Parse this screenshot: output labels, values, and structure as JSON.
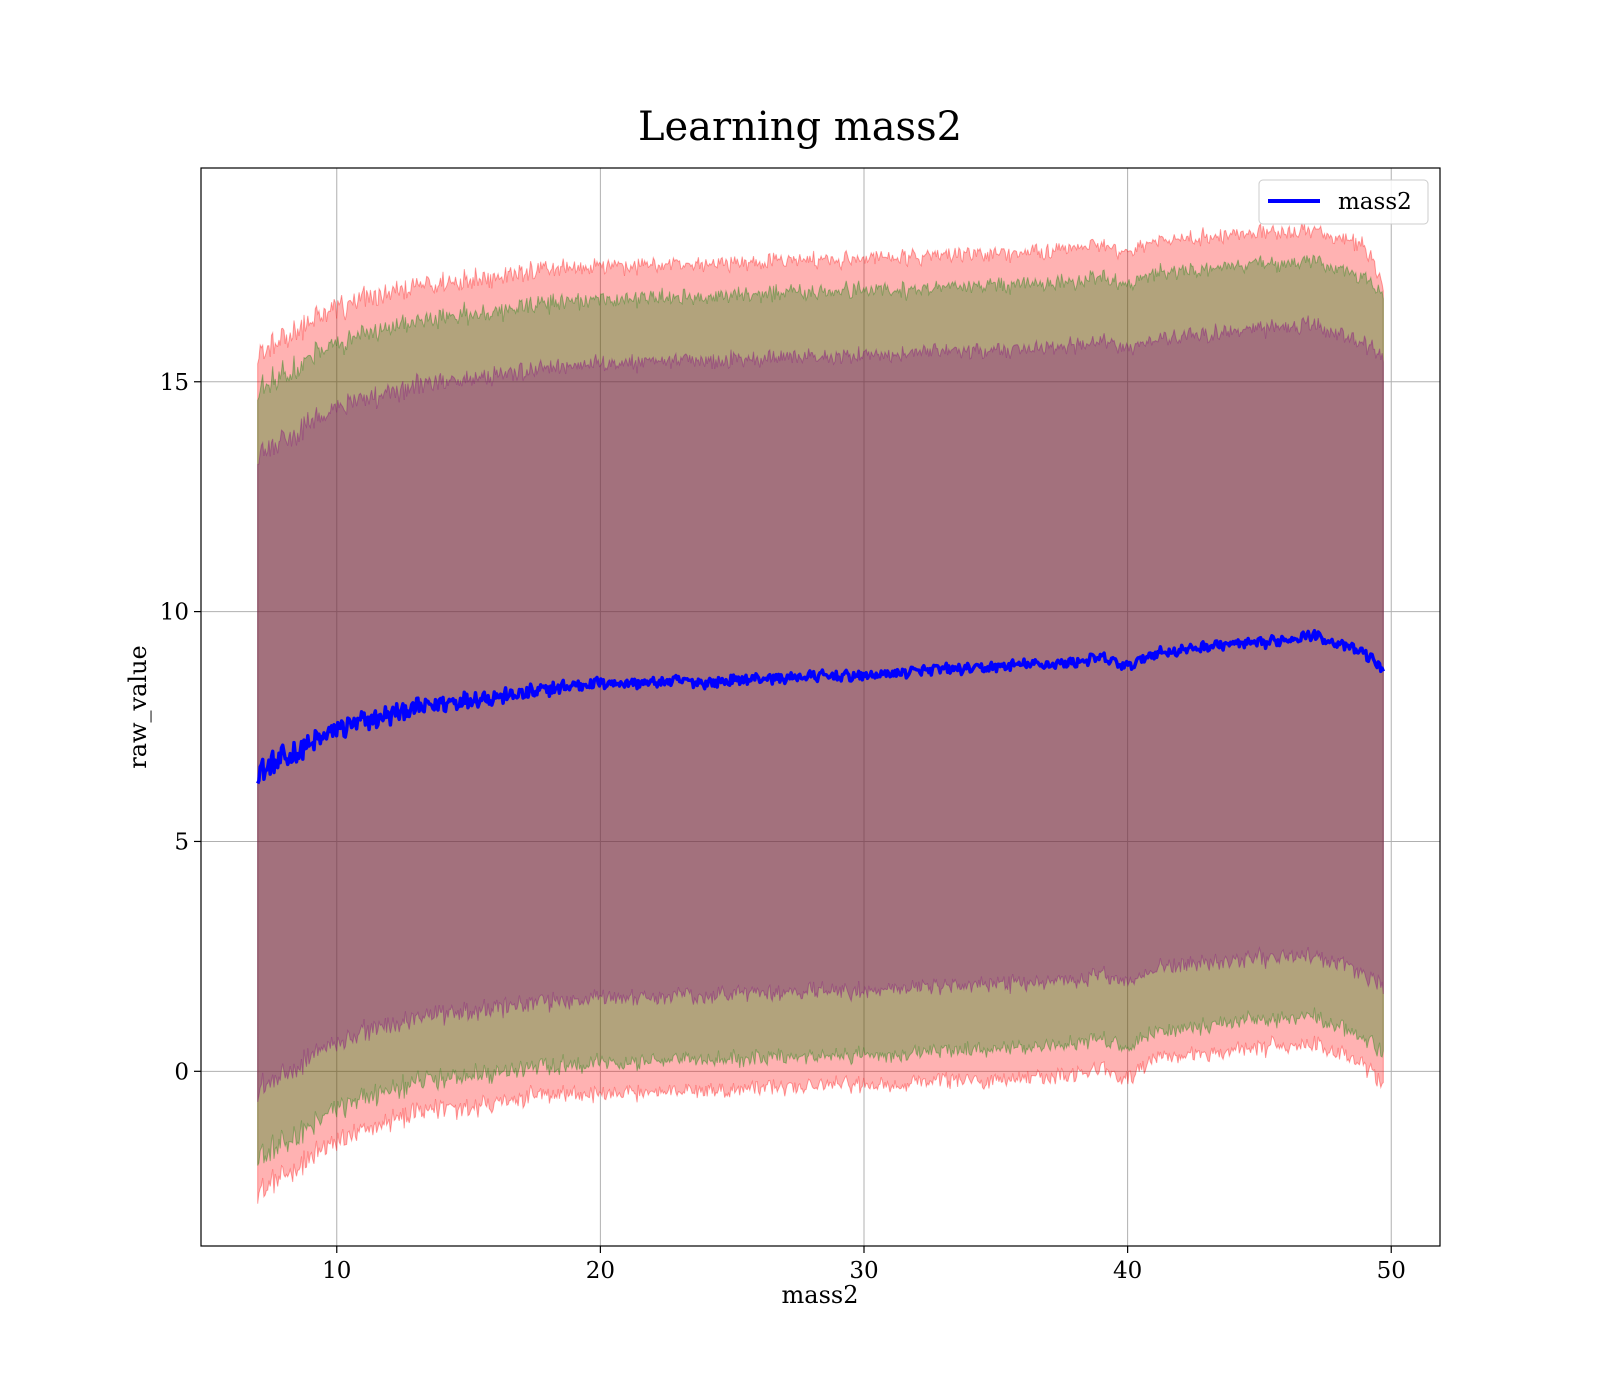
{
  "chart_data": {
    "type": "line",
    "title": "Learning mass2",
    "xlabel": "mass2",
    "ylabel": "raw_value",
    "xlim": [
      4.85,
      51.85
    ],
    "ylim": [
      -3.8,
      19.65
    ],
    "grid": true,
    "legend_position": "top-right",
    "x_ticks": [
      10,
      20,
      30,
      40,
      50
    ],
    "y_ticks": [
      0,
      5,
      10,
      15
    ],
    "x_tick_labels": [
      "10",
      "20",
      "30",
      "40",
      "50"
    ],
    "y_tick_labels": [
      "0",
      "5",
      "10",
      "15"
    ],
    "mean_series": {
      "name": "mass2",
      "color": "#0000ff",
      "x": [
        7.0,
        8.0,
        9.0,
        10.0,
        11.0,
        12.0,
        13.0,
        14.0,
        15.0,
        16.0,
        17.0,
        18.0,
        19.0,
        20.0,
        21.0,
        22.0,
        23.0,
        24.0,
        25.0,
        26.0,
        27.0,
        28.0,
        29.0,
        30.0,
        31.0,
        32.0,
        33.0,
        34.0,
        35.0,
        36.0,
        37.0,
        38.0,
        39.0,
        40.0,
        41.0,
        42.0,
        43.0,
        44.0,
        45.0,
        46.0,
        47.0,
        48.0,
        49.0,
        49.7
      ],
      "values": [
        6.5,
        6.8,
        7.1,
        7.45,
        7.6,
        7.75,
        7.9,
        8.0,
        8.1,
        8.15,
        8.2,
        8.3,
        8.4,
        8.45,
        8.45,
        8.45,
        8.5,
        8.45,
        8.5,
        8.55,
        8.55,
        8.6,
        8.6,
        8.6,
        8.65,
        8.7,
        8.75,
        8.75,
        8.8,
        8.85,
        8.85,
        8.9,
        9.0,
        8.8,
        9.1,
        9.15,
        9.25,
        9.3,
        9.3,
        9.4,
        9.5,
        9.3,
        9.1,
        8.75
      ]
    },
    "bands": [
      {
        "color": "#ff0000",
        "opacity": 0.3,
        "lower": [
          -2.6,
          -2.3,
          -1.9,
          -1.5,
          -1.3,
          -1.1,
          -0.9,
          -0.8,
          -0.75,
          -0.65,
          -0.6,
          -0.55,
          -0.5,
          -0.5,
          -0.45,
          -0.45,
          -0.45,
          -0.4,
          -0.4,
          -0.35,
          -0.35,
          -0.35,
          -0.3,
          -0.3,
          -0.3,
          -0.25,
          -0.2,
          -0.2,
          -0.2,
          -0.15,
          -0.1,
          -0.05,
          0.05,
          -0.2,
          0.3,
          0.35,
          0.4,
          0.45,
          0.5,
          0.55,
          0.6,
          0.4,
          0.1,
          -0.25
        ],
        "upper": [
          15.6,
          15.9,
          16.3,
          16.6,
          16.8,
          16.9,
          17.05,
          17.15,
          17.25,
          17.3,
          17.35,
          17.45,
          17.5,
          17.55,
          17.5,
          17.55,
          17.55,
          17.55,
          17.6,
          17.6,
          17.65,
          17.65,
          17.65,
          17.7,
          17.7,
          17.7,
          17.75,
          17.75,
          17.8,
          17.8,
          17.85,
          17.9,
          17.95,
          17.8,
          18.05,
          18.1,
          18.15,
          18.2,
          18.2,
          18.3,
          18.35,
          18.1,
          17.95,
          17.1
        ]
      },
      {
        "color": "#008000",
        "opacity": 0.3,
        "lower": [
          -1.9,
          -1.6,
          -1.2,
          -0.8,
          -0.6,
          -0.4,
          -0.25,
          -0.15,
          -0.05,
          0.0,
          0.05,
          0.1,
          0.15,
          0.2,
          0.2,
          0.2,
          0.25,
          0.25,
          0.25,
          0.3,
          0.3,
          0.3,
          0.35,
          0.35,
          0.35,
          0.4,
          0.45,
          0.45,
          0.5,
          0.5,
          0.55,
          0.6,
          0.7,
          0.45,
          0.9,
          0.95,
          1.0,
          1.05,
          1.1,
          1.15,
          1.2,
          1.0,
          0.7,
          0.4
        ],
        "upper": [
          14.8,
          15.1,
          15.5,
          15.8,
          16.0,
          16.15,
          16.3,
          16.4,
          16.5,
          16.55,
          16.6,
          16.7,
          16.75,
          16.8,
          16.8,
          16.85,
          16.85,
          16.85,
          16.9,
          16.9,
          16.95,
          16.95,
          16.95,
          17.0,
          17.0,
          17.0,
          17.05,
          17.05,
          17.1,
          17.1,
          17.15,
          17.2,
          17.25,
          17.1,
          17.35,
          17.4,
          17.45,
          17.5,
          17.55,
          17.6,
          17.65,
          17.45,
          17.25,
          16.9
        ]
      },
      {
        "color": "#800080",
        "opacity": 0.3,
        "lower": [
          -0.4,
          -0.1,
          0.3,
          0.6,
          0.85,
          1.0,
          1.15,
          1.25,
          1.35,
          1.4,
          1.45,
          1.5,
          1.55,
          1.6,
          1.6,
          1.6,
          1.65,
          1.65,
          1.7,
          1.7,
          1.7,
          1.75,
          1.75,
          1.75,
          1.8,
          1.8,
          1.85,
          1.85,
          1.9,
          1.9,
          1.95,
          2.0,
          2.1,
          1.9,
          2.25,
          2.3,
          2.35,
          2.4,
          2.45,
          2.5,
          2.55,
          2.35,
          2.1,
          1.85
        ],
        "upper": [
          13.4,
          13.7,
          14.1,
          14.4,
          14.6,
          14.75,
          14.9,
          15.0,
          15.1,
          15.15,
          15.2,
          15.3,
          15.35,
          15.4,
          15.4,
          15.45,
          15.45,
          15.45,
          15.5,
          15.5,
          15.55,
          15.55,
          15.55,
          15.6,
          15.6,
          15.6,
          15.65,
          15.65,
          15.7,
          15.7,
          15.75,
          15.8,
          15.85,
          15.7,
          15.95,
          16.0,
          16.05,
          16.1,
          16.15,
          16.2,
          16.25,
          16.05,
          15.85,
          15.5
        ]
      }
    ]
  }
}
